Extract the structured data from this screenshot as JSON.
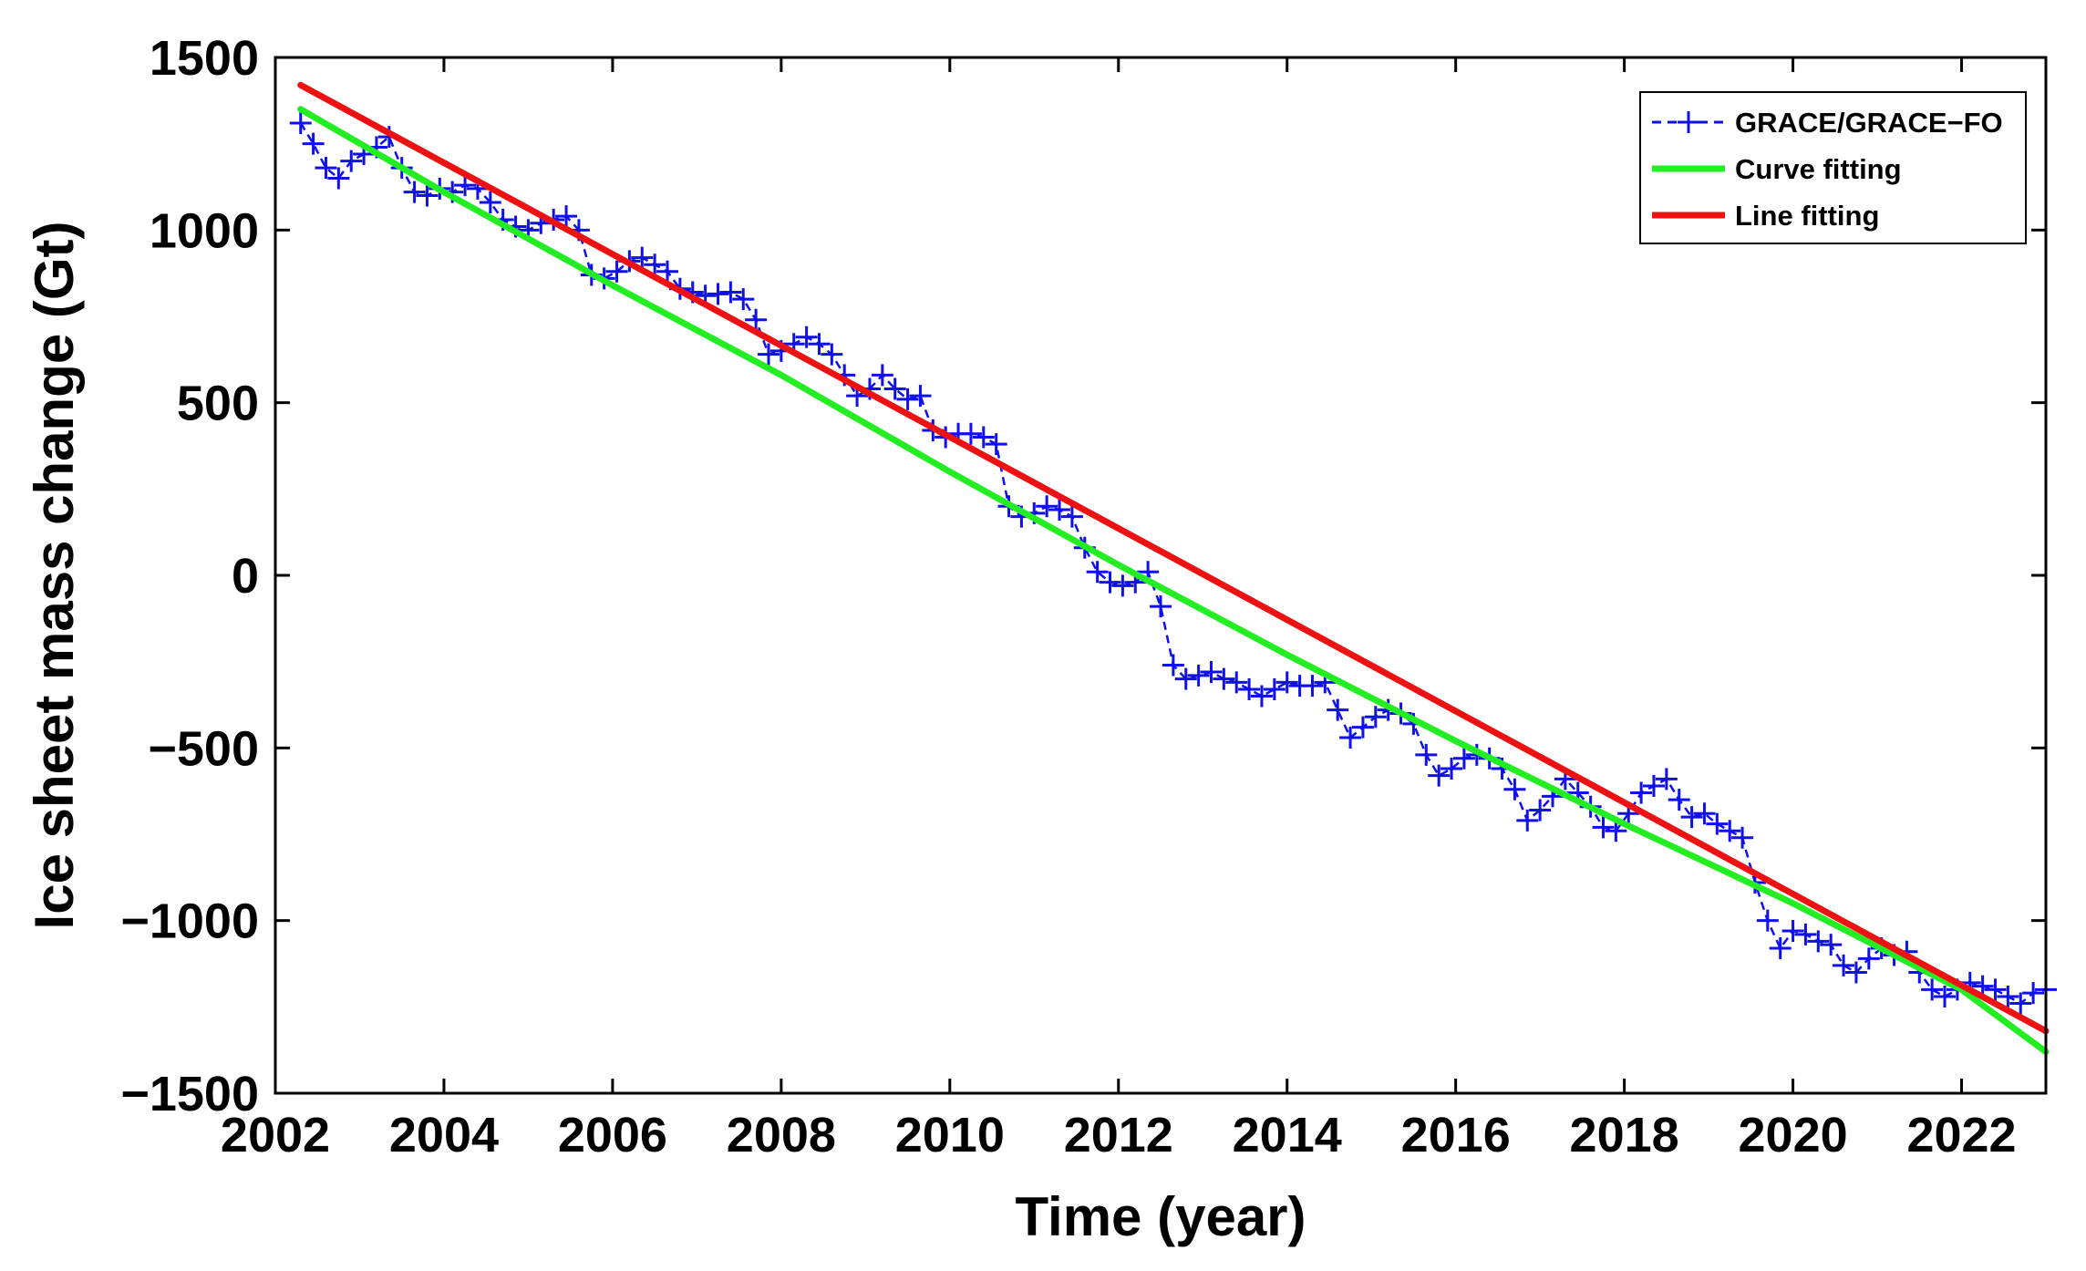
{
  "chart_data": {
    "type": "line",
    "title": "",
    "xlabel": "Time (year)",
    "ylabel": "Ice sheet mass change (Gt)",
    "xlim": [
      2002,
      2023
    ],
    "ylim": [
      -1500,
      1500
    ],
    "xticks": [
      2002,
      2004,
      2006,
      2008,
      2010,
      2012,
      2014,
      2016,
      2018,
      2020,
      2022
    ],
    "yticks": [
      1500,
      1000,
      500,
      0,
      -500,
      -1000,
      -1500
    ],
    "xtick_labels": [
      "2002",
      "2004",
      "2006",
      "2008",
      "2010",
      "2012",
      "2014",
      "2016",
      "2018",
      "2020",
      "2022"
    ],
    "ytick_labels": [
      "1500",
      "1000",
      "500",
      "0",
      "−500",
      "−1000",
      "−1500"
    ],
    "grid": false,
    "legend_position": "top-right",
    "colors": {
      "grace": "#1010ee",
      "curve": "#22ee22",
      "line": "#ee1111"
    },
    "series": [
      {
        "name": "GRACE/GRACE−FO",
        "style": "dashed-plus",
        "x": [
          2002.3,
          2002.45,
          2002.6,
          2002.75,
          2002.9,
          2003.05,
          2003.2,
          2003.35,
          2003.5,
          2003.65,
          2003.8,
          2003.95,
          2004.1,
          2004.25,
          2004.4,
          2004.55,
          2004.7,
          2004.85,
          2005.0,
          2005.15,
          2005.3,
          2005.45,
          2005.6,
          2005.75,
          2005.9,
          2006.05,
          2006.2,
          2006.35,
          2006.5,
          2006.65,
          2006.8,
          2006.95,
          2007.1,
          2007.25,
          2007.4,
          2007.55,
          2007.7,
          2007.85,
          2008.0,
          2008.15,
          2008.3,
          2008.45,
          2008.6,
          2008.75,
          2008.9,
          2009.05,
          2009.2,
          2009.35,
          2009.5,
          2009.65,
          2009.8,
          2009.95,
          2010.1,
          2010.25,
          2010.4,
          2010.55,
          2010.7,
          2010.85,
          2011.0,
          2011.15,
          2011.3,
          2011.45,
          2011.6,
          2011.75,
          2011.9,
          2012.05,
          2012.2,
          2012.35,
          2012.5,
          2012.65,
          2012.8,
          2012.95,
          2013.1,
          2013.25,
          2013.4,
          2013.55,
          2013.7,
          2013.85,
          2014.0,
          2014.15,
          2014.3,
          2014.45,
          2014.6,
          2014.75,
          2014.9,
          2015.05,
          2015.2,
          2015.35,
          2015.5,
          2015.65,
          2015.8,
          2015.95,
          2016.1,
          2016.25,
          2016.4,
          2016.55,
          2016.7,
          2016.85,
          2017.0,
          2017.15,
          2017.3,
          2017.45,
          2017.6,
          2017.75,
          2017.9,
          2018.05,
          2018.2,
          2018.35,
          2018.5,
          2018.65,
          2018.8,
          2018.95,
          2019.1,
          2019.25,
          2019.4,
          2019.55,
          2019.7,
          2019.85,
          2020.0,
          2020.15,
          2020.3,
          2020.45,
          2020.6,
          2020.75,
          2020.9,
          2021.05,
          2021.2,
          2021.35,
          2021.5,
          2021.65,
          2021.8,
          2021.95,
          2022.1,
          2022.25,
          2022.4,
          2022.55,
          2022.7,
          2022.85,
          2023.0
        ],
        "values": [
          1310,
          1250,
          1180,
          1150,
          1200,
          1220,
          1240,
          1270,
          1180,
          1110,
          1100,
          1120,
          1110,
          1130,
          1120,
          1080,
          1030,
          1010,
          1000,
          1020,
          1030,
          1040,
          1000,
          870,
          860,
          880,
          910,
          920,
          900,
          880,
          830,
          820,
          810,
          815,
          820,
          800,
          740,
          640,
          650,
          670,
          690,
          670,
          640,
          580,
          520,
          540,
          580,
          540,
          510,
          520,
          420,
          400,
          410,
          410,
          400,
          380,
          200,
          170,
          180,
          200,
          190,
          170,
          80,
          10,
          -20,
          -30,
          -20,
          10,
          -90,
          -260,
          -300,
          -290,
          -280,
          -300,
          -310,
          -330,
          -350,
          -330,
          -310,
          -320,
          -320,
          -310,
          -390,
          -470,
          -440,
          -410,
          -390,
          -400,
          -430,
          -520,
          -580,
          -560,
          -530,
          -520,
          -530,
          -560,
          -620,
          -710,
          -680,
          -640,
          -590,
          -630,
          -670,
          -730,
          -740,
          -690,
          -630,
          -610,
          -590,
          -650,
          -700,
          -690,
          -720,
          -740,
          -760,
          -890,
          -1000,
          -1080,
          -1030,
          -1040,
          -1060,
          -1070,
          -1130,
          -1150,
          -1110,
          -1080,
          -1100,
          -1090,
          -1150,
          -1200,
          -1220,
          -1200,
          -1180,
          -1190,
          -1200,
          -1220,
          -1240,
          -1210,
          -1200
        ]
      },
      {
        "name": "Curve fitting",
        "style": "solid",
        "x": [
          2002.3,
          2004.0,
          2006.0,
          2008.0,
          2010.0,
          2012.0,
          2014.0,
          2016.0,
          2018.0,
          2020.0,
          2022.0,
          2023.0
        ],
        "values": [
          1350,
          1110,
          840,
          580,
          300,
          30,
          -230,
          -480,
          -720,
          -950,
          -1200,
          -1380
        ]
      },
      {
        "name": "Line fitting",
        "style": "solid",
        "x": [
          2002.3,
          2023.0
        ],
        "values": [
          1420,
          -1320
        ]
      }
    ]
  }
}
